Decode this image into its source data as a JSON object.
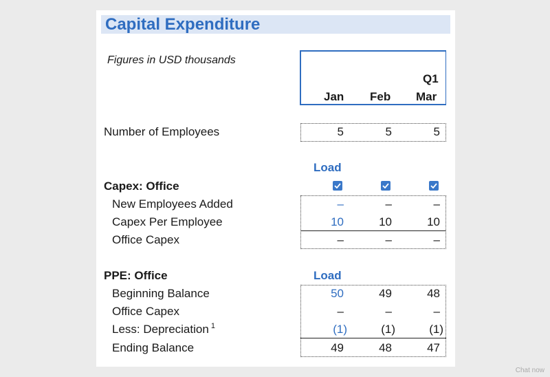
{
  "title": "Capital Expenditure",
  "subtitle": "Figures in USD thousands",
  "header": {
    "quarter": "Q1",
    "months": [
      "Jan",
      "Feb",
      "Mar"
    ]
  },
  "employees": {
    "label": "Number of Employees",
    "values": [
      "5",
      "5",
      "5"
    ]
  },
  "capex_office": {
    "load_label": "Load",
    "section_label": "Capex: Office",
    "checkbox_states": [
      true,
      true,
      true
    ],
    "rows": [
      {
        "label": "New Employees Added",
        "values": [
          "–",
          "–",
          "–"
        ]
      },
      {
        "label": "Capex Per Employee",
        "values": [
          "10",
          "10",
          "10"
        ]
      },
      {
        "label": "Office Capex",
        "values": [
          "–",
          "–",
          "–"
        ]
      }
    ]
  },
  "ppe_office": {
    "load_label": "Load",
    "section_label": "PPE: Office",
    "rows": [
      {
        "label": "Beginning Balance",
        "values": [
          "50",
          "49",
          "48"
        ]
      },
      {
        "label": "Office Capex",
        "values": [
          "–",
          "–",
          "–"
        ]
      },
      {
        "label": "Less: Depreciation",
        "footnote": "1",
        "values": [
          "(1)",
          "(1)",
          "(1)"
        ]
      },
      {
        "label": "Ending Balance",
        "values": [
          "49",
          "48",
          "47"
        ]
      }
    ]
  },
  "colors": {
    "accent": "#2f6dc0",
    "title_bg": "#dce6f5",
    "checkbox": "#3a78c9"
  },
  "watermark": "Chat now"
}
